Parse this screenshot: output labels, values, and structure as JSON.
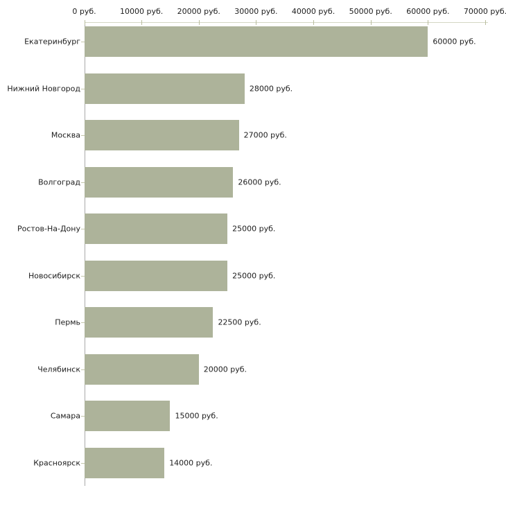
{
  "chart_data": {
    "type": "bar",
    "orientation": "horizontal",
    "title": "",
    "xlabel": "",
    "ylabel": "",
    "categories": [
      "Екатеринбург",
      "Нижний Новгород",
      "Москва",
      "Волгоград",
      "Ростов-На-Дону",
      "Новосибирск",
      "Пермь",
      "Челябинск",
      "Самара",
      "Красноярск"
    ],
    "values": [
      60000,
      28000,
      27000,
      26000,
      25000,
      25000,
      22500,
      20000,
      15000,
      14000
    ],
    "value_labels": [
      "60000 руб.",
      "28000 руб.",
      "27000 руб.",
      "26000 руб.",
      "25000 руб.",
      "25000 руб.",
      "22500 руб.",
      "20000 руб.",
      "15000 руб.",
      "14000 руб."
    ],
    "x_ticks": [
      0,
      10000,
      20000,
      30000,
      40000,
      50000,
      60000,
      70000
    ],
    "x_tick_labels": [
      "0 руб.",
      "10000 руб.",
      "20000 руб.",
      "30000 руб.",
      "40000 руб.",
      "50000 руб.",
      "60000 руб.",
      "70000 руб."
    ],
    "xlim": [
      0,
      70000
    ],
    "grid": "off",
    "legend": "none",
    "axis_position": "top",
    "colors": {
      "bar": "#adb39a",
      "top_axis_line": "#d4d6c4",
      "x_tick": "#b9bd9e",
      "y_axis_line": "#a9a9a9",
      "y_tick": "#c3c6aa",
      "text": "#1c1c1c",
      "background": "#ffffff"
    }
  }
}
